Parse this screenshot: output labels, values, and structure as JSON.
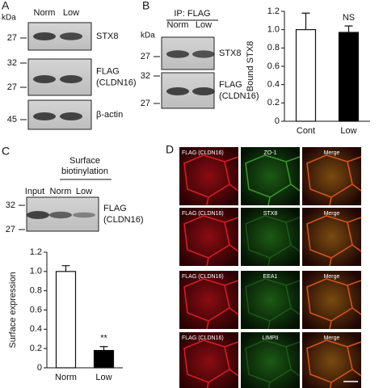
{
  "panels": {
    "a": {
      "letter": "A",
      "unit": "kDa",
      "lanes": [
        "Norm",
        "Low"
      ],
      "blots": [
        {
          "markers": [
            27
          ],
          "label": [
            "STX8"
          ]
        },
        {
          "markers": [
            32,
            27
          ],
          "label": [
            "FLAG",
            "(CLDN16)"
          ]
        },
        {
          "markers": [
            45
          ],
          "label": [
            "β-actin"
          ]
        }
      ]
    },
    "b": {
      "letter": "B",
      "heading": "IP: FLAG",
      "unit": "kDa",
      "lanes": [
        "Norm",
        "Low"
      ],
      "blots": [
        {
          "markers": [
            27
          ],
          "label": [
            "STX8"
          ]
        },
        {
          "markers": [
            32,
            27
          ],
          "label": [
            "FLAG",
            "(CLDN16)"
          ]
        }
      ]
    },
    "c": {
      "letter": "C",
      "heading": [
        "Surface",
        "biotinylation"
      ],
      "lanes": [
        "Input",
        "Norm",
        "Low"
      ],
      "blots": [
        {
          "markers": [
            32,
            27
          ],
          "label": [
            "FLAG",
            "(CLDN16)"
          ]
        }
      ]
    },
    "d": {
      "letter": "D",
      "rows": [
        [
          "FLAG (CLDN16)",
          "ZO-1",
          "Merge"
        ],
        [
          "FLAG (CLDN16)",
          "STX8",
          "Merge"
        ],
        [
          "FLAG (CLDN16)",
          "EEA1",
          "Merge"
        ],
        [
          "FLAG (CLDN16)",
          "LIMPII",
          "Merge"
        ]
      ]
    }
  },
  "chart_data": [
    {
      "type": "bar",
      "ylabel": "Bound STX8",
      "categories": [
        "Cont",
        "Low"
      ],
      "values": [
        1.0,
        0.97
      ],
      "errors": [
        0.18,
        0.07
      ],
      "colors": [
        "#ffffff",
        "#000000"
      ],
      "annotation": "NS",
      "ylim": [
        0,
        1.2
      ],
      "yticks": [
        0,
        0.2,
        0.4,
        0.6,
        0.8,
        {
          "value": 1,
          "label": "1.0"
        },
        1.2
      ]
    },
    {
      "type": "bar",
      "ylabel": "Surface expression",
      "categories": [
        "Norm",
        "Low"
      ],
      "values": [
        1.0,
        0.18
      ],
      "errors": [
        0.06,
        0.04
      ],
      "colors": [
        "#ffffff",
        "#000000"
      ],
      "annotation": "**",
      "ylim": [
        0,
        1.2
      ],
      "yticks": [
        0,
        0.2,
        0.4,
        0.6,
        0.8,
        {
          "value": 1,
          "label": "1.0"
        },
        1.2
      ]
    }
  ]
}
